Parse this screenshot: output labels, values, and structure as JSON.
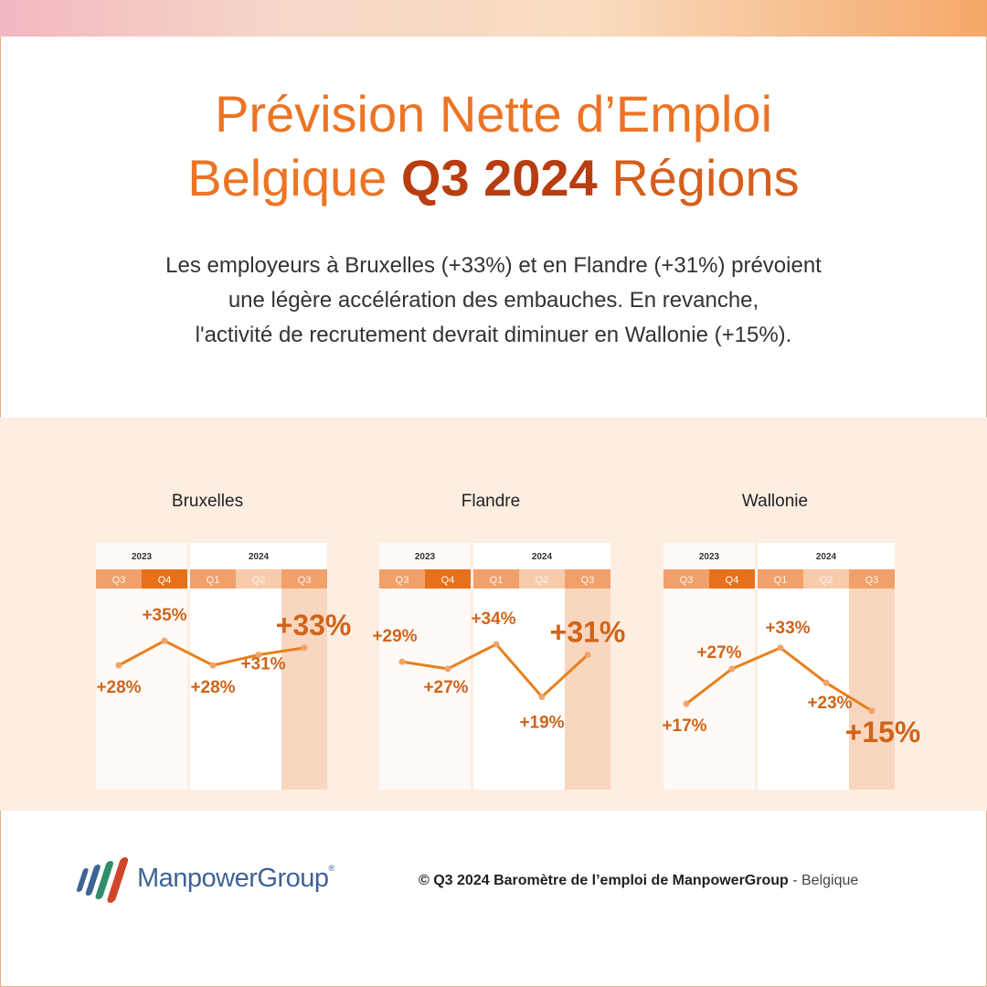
{
  "title": {
    "line1": "Prévision Nette d’Emploi",
    "line2_part1": "Belgique ",
    "line2_strong": "Q3 2024",
    "line2_part2": " Régions"
  },
  "subtitle": {
    "line1": "Les employeurs à Bruxelles (+33%) et en Flandre (+31%) prévoient",
    "line2": "une légère accélération des embauches. En revanche,",
    "line3": "l'activité de recrutement devrait diminuer en Wallonie (+15%)."
  },
  "colors": {
    "title": "#ec7424",
    "title_strong": "#b83d10",
    "line": "#e8801e",
    "value_text": "#d0641a",
    "band": "#fdeee2",
    "tab_dark": "#e8701a",
    "tab_mid": "#f1a06a",
    "tab_light": "#f8cbab",
    "forecast_col": "#f9d6bf"
  },
  "chart_data": [
    {
      "type": "line",
      "title": "Bruxelles",
      "years": [
        {
          "label": "2023",
          "span": 2
        },
        {
          "label": "2024",
          "span": 3
        }
      ],
      "categories": [
        "Q3",
        "Q4",
        "Q1",
        "Q2",
        "Q3"
      ],
      "values": [
        28,
        35,
        28,
        31,
        33
      ],
      "labels": [
        "+28%",
        "+35%",
        "+28%",
        "+31%",
        "+33%"
      ],
      "ylim": [
        10,
        40
      ]
    },
    {
      "type": "line",
      "title": "Flandre",
      "years": [
        {
          "label": "2023",
          "span": 2
        },
        {
          "label": "2024",
          "span": 3
        }
      ],
      "categories": [
        "Q3",
        "Q4",
        "Q1",
        "Q2",
        "Q3"
      ],
      "values": [
        29,
        27,
        34,
        19,
        31
      ],
      "labels": [
        "+29%",
        "+27%",
        "+34%",
        "+19%",
        "+31%"
      ],
      "ylim": [
        10,
        40
      ]
    },
    {
      "type": "line",
      "title": "Wallonie",
      "years": [
        {
          "label": "2023",
          "span": 2
        },
        {
          "label": "2024",
          "span": 3
        }
      ],
      "categories": [
        "Q3",
        "Q4",
        "Q1",
        "Q2",
        "Q3"
      ],
      "values": [
        17,
        27,
        33,
        23,
        15
      ],
      "labels": [
        "+17%",
        "+27%",
        "+33%",
        "+23%",
        "+15%"
      ],
      "ylim": [
        10,
        40
      ]
    }
  ],
  "footer": {
    "brand": "ManpowerGroup",
    "registered": "®",
    "copyright_bold": "© Q3 2024 Baromètre de l’emploi de ManpowerGroup",
    "copyright_light": " - Belgique"
  }
}
